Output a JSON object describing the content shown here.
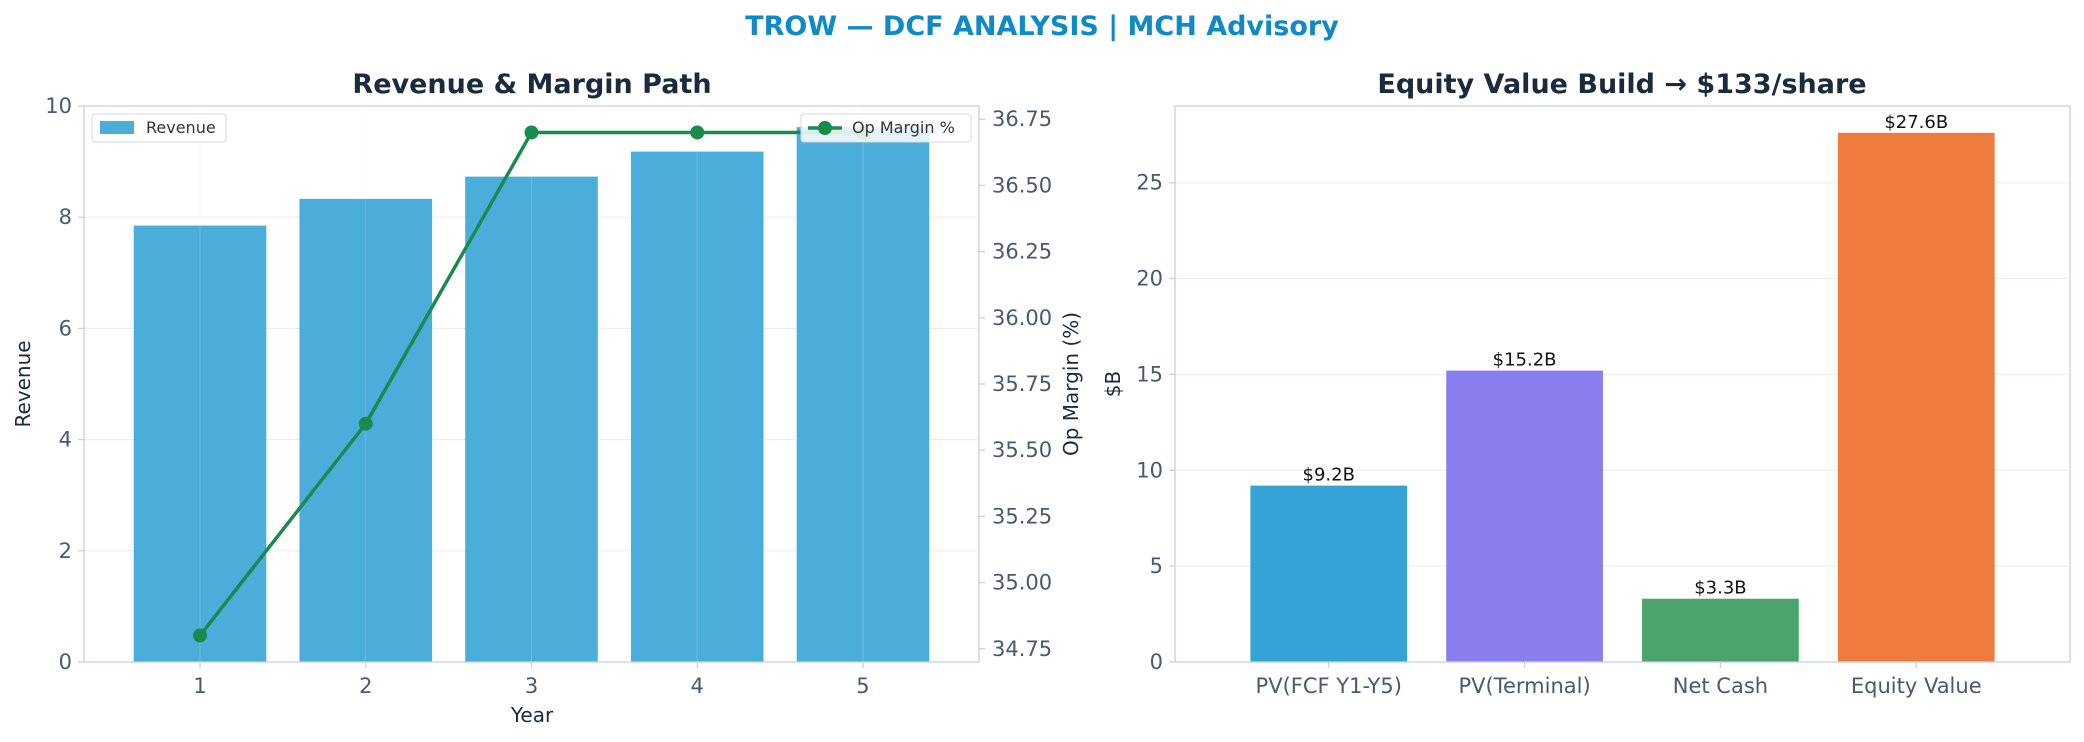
{
  "figure": {
    "suptitle": "TROW — DCF ANALYSIS | MCH Advisory"
  },
  "chart_data": [
    {
      "type": "bar",
      "title": "Revenue & Margin Path",
      "xlabel": "Year",
      "ylabel": "Revenue",
      "y2label": "Op Margin (%)",
      "categories": [
        "1",
        "2",
        "3",
        "4",
        "5"
      ],
      "ylim": [
        0,
        10
      ],
      "yticks": [
        0,
        2,
        4,
        6,
        8,
        10
      ],
      "y2lim": [
        34.7,
        36.8
      ],
      "y2ticks": [
        "34.75",
        "35.00",
        "35.25",
        "35.50",
        "35.75",
        "36.00",
        "36.25",
        "36.50",
        "36.75"
      ],
      "grid": true,
      "series": [
        {
          "name": "Revenue",
          "kind": "bar",
          "axis": "left",
          "color": "#4badd9",
          "values": [
            7.85,
            8.33,
            8.73,
            9.18,
            9.62
          ]
        },
        {
          "name": "Op Margin %",
          "kind": "line",
          "axis": "right",
          "color": "#1a8a4e",
          "values": [
            34.8,
            35.6,
            36.7,
            36.7,
            36.7
          ]
        }
      ],
      "legend": {
        "bar_placement": "top-left",
        "line_placement": "top-right"
      }
    },
    {
      "type": "bar",
      "title": "Equity Value Build → $133/share",
      "xlabel": "",
      "ylabel": "$B",
      "categories": [
        "PV(FCF Y1-Y5)",
        "PV(Terminal)",
        "Net Cash",
        "Equity Value"
      ],
      "values": [
        9.2,
        15.2,
        3.3,
        27.6
      ],
      "labels": [
        "$9.2B",
        "$15.2B",
        "$3.3B",
        "$27.6B"
      ],
      "colors": [
        "#35a3d5",
        "#8a7ded",
        "#4aa36c",
        "#ed7b3e"
      ],
      "ylim": [
        0,
        29
      ],
      "yticks": [
        0,
        5,
        10,
        15,
        20,
        25
      ],
      "grid": true
    }
  ]
}
